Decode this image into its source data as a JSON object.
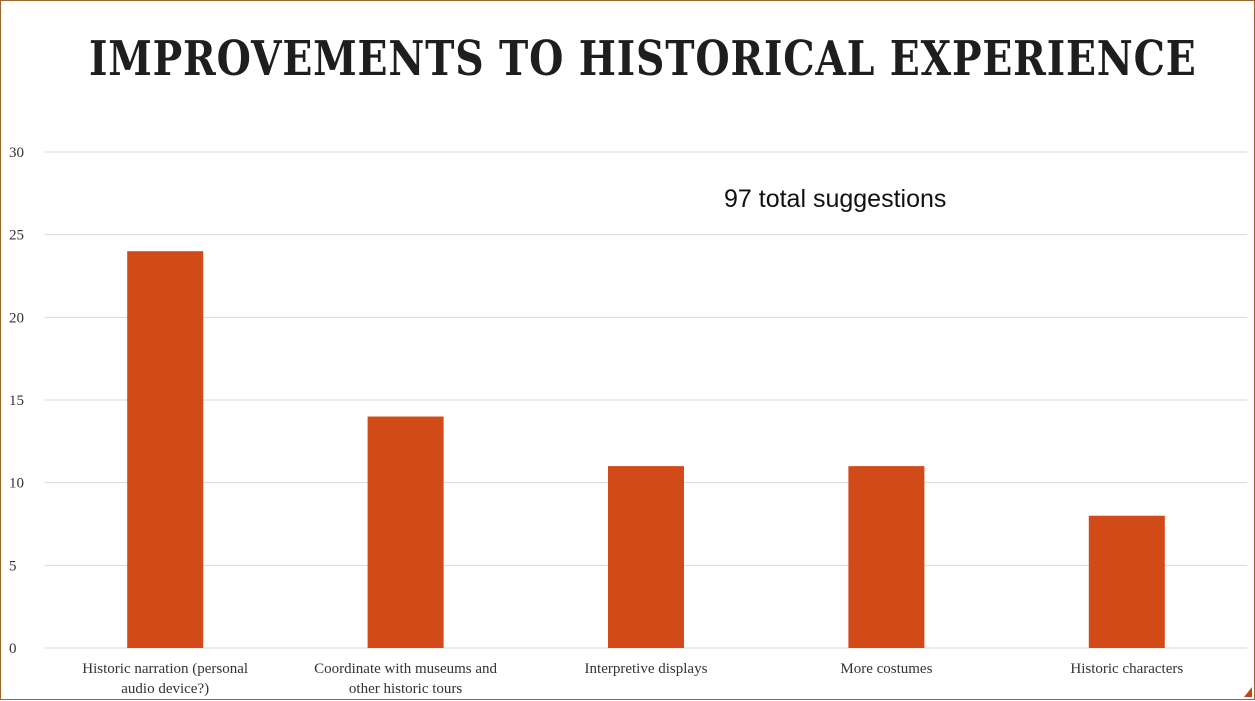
{
  "slide": {
    "title": "IMPROVEMENTS TO HISTORICAL EXPERIENCE",
    "annotation": "97 total suggestions"
  },
  "colors": {
    "bar": "#d24a18",
    "grid": "#d9d9d9",
    "border": "#a0652a",
    "text": "#333333"
  },
  "chart_data": {
    "type": "bar",
    "title": "",
    "xlabel": "",
    "ylabel": "",
    "ylim": [
      0,
      30
    ],
    "yticks": [
      0,
      5,
      10,
      15,
      20,
      25,
      30
    ],
    "grid": true,
    "categories": [
      [
        "Historic narration (personal",
        "audio device?)"
      ],
      [
        "Coordinate with museums and",
        "other historic tours"
      ],
      [
        "Interpretive displays"
      ],
      [
        "More costumes"
      ],
      [
        "Historic characters"
      ]
    ],
    "values": [
      24,
      14,
      11,
      11,
      8
    ]
  }
}
